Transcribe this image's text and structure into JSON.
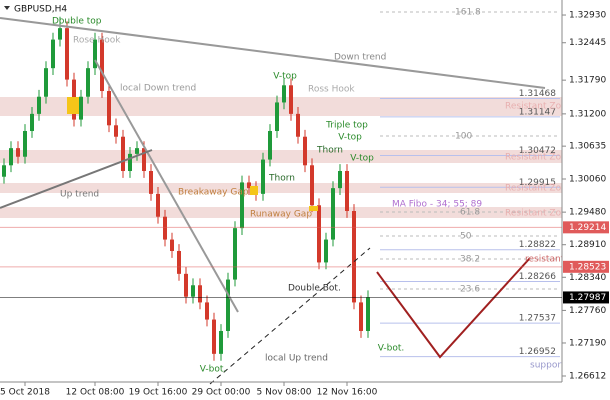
{
  "title": "GBPUSD,H4",
  "chart_data": {
    "type": "candlestick",
    "categories": [
      null,
      null,
      null,
      "5 Oct 2018",
      null,
      null,
      null,
      null,
      null,
      null,
      null,
      null,
      null,
      "12 Oct 08:00",
      null,
      null,
      null,
      null,
      null,
      null,
      null,
      null,
      "19 Oct 16:00",
      null,
      null,
      null,
      null,
      null,
      null,
      null,
      null,
      "29 Oct 00:00",
      null,
      null,
      null,
      null,
      null,
      null,
      null,
      null,
      "5 Nov 08:00",
      null,
      null,
      null,
      null,
      null,
      null,
      null,
      null,
      "12 Nov 16:00",
      null,
      null,
      null
    ],
    "open": [
      1.301,
      1.303,
      1.306,
      1.3045,
      1.309,
      1.312,
      1.315,
      1.32,
      1.325,
      1.327,
      1.318,
      1.311,
      1.315,
      1.32,
      1.325,
      1.316,
      1.31,
      1.308,
      1.302,
      1.305,
      1.306,
      1.302,
      1.298,
      1.294,
      1.29,
      1.288,
      1.284,
      1.28,
      1.282,
      1.279,
      1.276,
      1.27,
      1.274,
      1.283,
      1.292,
      1.3,
      1.299,
      1.298,
      1.304,
      1.309,
      1.314,
      1.317,
      1.312,
      1.308,
      1.303,
      1.296,
      1.286,
      1.29,
      1.299,
      1.302,
      1.295,
      1.279,
      1.274
    ],
    "high": [
      1.3042,
      1.3072,
      1.3072,
      1.3102,
      1.3132,
      1.3162,
      1.3212,
      1.3262,
      1.329,
      1.3282,
      1.3192,
      1.3162,
      1.3212,
      1.3262,
      1.3262,
      1.3172,
      1.3112,
      1.3092,
      1.3062,
      1.3072,
      1.3072,
      1.3032,
      1.2992,
      1.2952,
      1.2912,
      1.2892,
      1.2852,
      1.2832,
      1.2832,
      1.2802,
      1.2772,
      1.2752,
      1.2842,
      1.2932,
      1.3012,
      1.3012,
      1.3002,
      1.3052,
      1.3102,
      1.3152,
      1.3182,
      1.3182,
      1.3132,
      1.3092,
      1.3042,
      1.2972,
      1.2912,
      1.3002,
      1.3032,
      1.3032,
      1.2962,
      1.2802,
      1.2811
    ],
    "low": [
      1.2998,
      1.3018,
      1.3033,
      1.3033,
      1.3078,
      1.3108,
      1.3138,
      1.3188,
      1.3238,
      1.3168,
      1.3098,
      1.3098,
      1.3138,
      1.3188,
      1.3148,
      1.3088,
      1.3068,
      1.3008,
      1.3008,
      1.3038,
      1.3008,
      1.2968,
      1.2928,
      1.2888,
      1.2868,
      1.2828,
      1.2788,
      1.2788,
      1.2778,
      1.2748,
      1.2688,
      1.2688,
      1.2728,
      1.2818,
      1.2908,
      1.2978,
      1.2968,
      1.2968,
      1.3028,
      1.3078,
      1.3128,
      1.3108,
      1.3068,
      1.3018,
      1.2948,
      1.2848,
      1.2848,
      1.2888,
      1.2978,
      1.2938,
      1.2778,
      1.2728,
      1.2728
    ],
    "close": [
      1.303,
      1.306,
      1.3045,
      1.309,
      1.312,
      1.315,
      1.32,
      1.325,
      1.327,
      1.318,
      1.311,
      1.315,
      1.32,
      1.325,
      1.316,
      1.31,
      1.308,
      1.302,
      1.305,
      1.306,
      1.302,
      1.298,
      1.294,
      1.29,
      1.288,
      1.284,
      1.28,
      1.282,
      1.279,
      1.276,
      1.27,
      1.274,
      1.283,
      1.292,
      1.3,
      1.299,
      1.298,
      1.304,
      1.309,
      1.314,
      1.317,
      1.312,
      1.308,
      1.303,
      1.296,
      1.286,
      1.29,
      1.299,
      1.302,
      1.295,
      1.279,
      1.274,
      1.2799
    ],
    "up_color": "#1f9a3a",
    "down_color": "#d3392b",
    "ylim": [
      1.26192,
      1.33193
    ],
    "yticks": [
      {
        "value": 1.3293,
        "label": "1.32930"
      },
      {
        "value": 1.32445,
        "label": "1.32445"
      },
      {
        "value": 1.3179,
        "label": "1.31790"
      },
      {
        "value": 1.312,
        "label": "1.31200"
      },
      {
        "value": 1.30635,
        "label": "1.30635"
      },
      {
        "value": 1.3006,
        "label": "1.30060"
      },
      {
        "value": 1.2948,
        "label": "1.29480"
      },
      {
        "value": 1.2891,
        "label": "1.28910"
      },
      {
        "value": 1.2834,
        "label": "1.28340"
      },
      {
        "value": 1.2776,
        "label": "1.27760"
      },
      {
        "value": 1.2719,
        "label": "1.27190"
      },
      {
        "value": 1.26612,
        "label": "1.26612"
      }
    ],
    "price_labels": [
      {
        "value": 1.29214,
        "color": "#e05a5a"
      },
      {
        "value": 1.28523,
        "color": "#e05a5a"
      },
      {
        "value": 1.27987,
        "color": "#000000"
      }
    ],
    "levels": [
      1.31468,
      1.31147,
      1.30472,
      1.29915,
      1.28822,
      1.28266,
      1.27537,
      1.26952
    ],
    "annotations": [
      "Double top",
      "Rose Hook",
      "local Down trend",
      "Down trend",
      "V-top",
      "Ross Hook",
      "Triple top",
      "Thorn",
      "V-top",
      "V-top",
      "Thorn",
      "Breakaway Gap",
      "Runaway Gap",
      "MA Fibo - 34; 55; 89",
      "Up trend",
      "Double Bot.",
      "local Up trend",
      "V-bot.",
      "V-bot.",
      "resistant",
      "support",
      "Resistant Zone",
      "Resistant Zone",
      "Resistant Zone",
      "Resistant Zone",
      "161.8",
      "100",
      "61.8",
      "50",
      "38.2",
      "23.6"
    ]
  }
}
